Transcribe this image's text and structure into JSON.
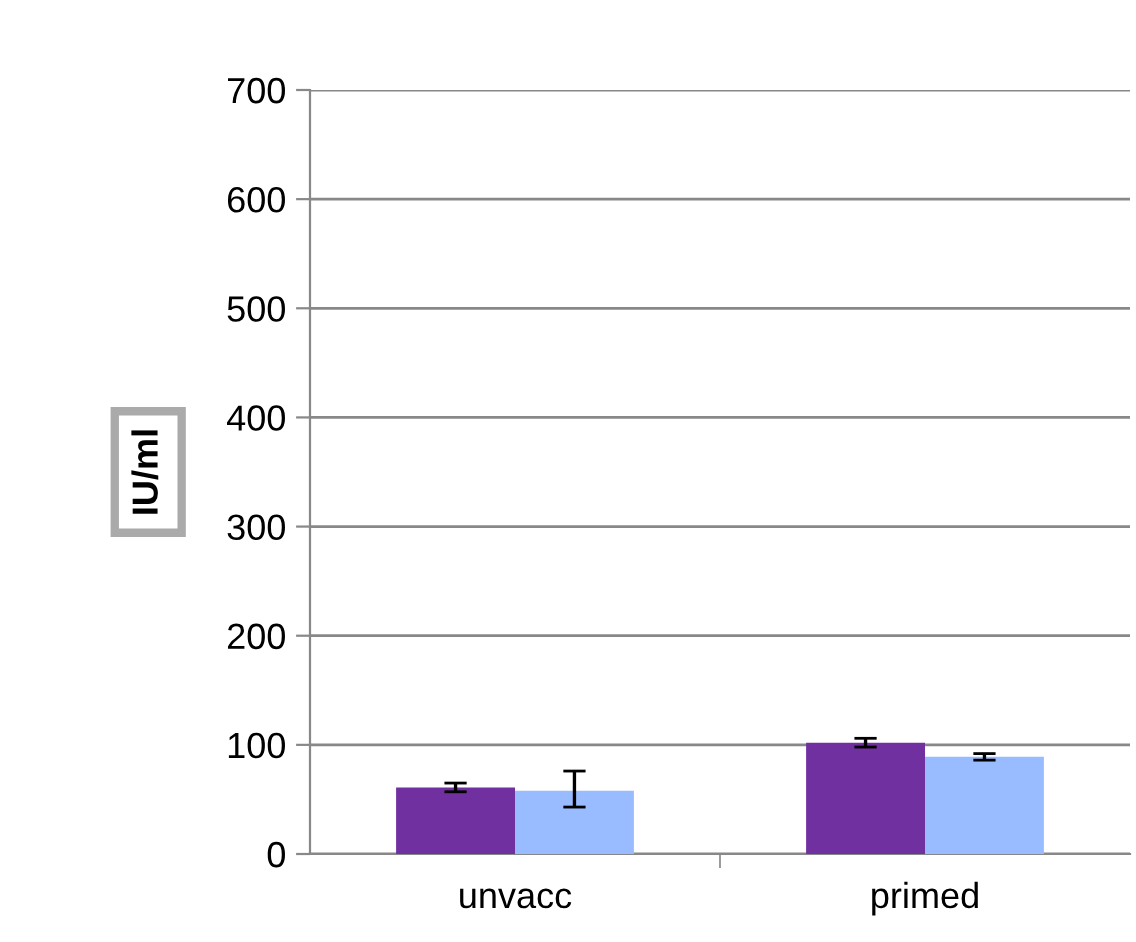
{
  "chart_data": {
    "type": "bar",
    "ylabel": "IU/ml",
    "categories": [
      "unvacc",
      "primed"
    ],
    "series": [
      {
        "color": "#7030a0",
        "values": [
          61,
          102
        ],
        "errors": [
          4,
          4
        ]
      },
      {
        "color": "#99bbff",
        "values": [
          58,
          89
        ],
        "errors": [
          [
            43,
            76
          ],
          3
        ]
      }
    ],
    "ylim": [
      0,
      700
    ],
    "yticks": [
      0,
      100,
      200,
      300,
      400,
      500,
      600,
      700
    ],
    "grid": "y",
    "legend": false
  }
}
